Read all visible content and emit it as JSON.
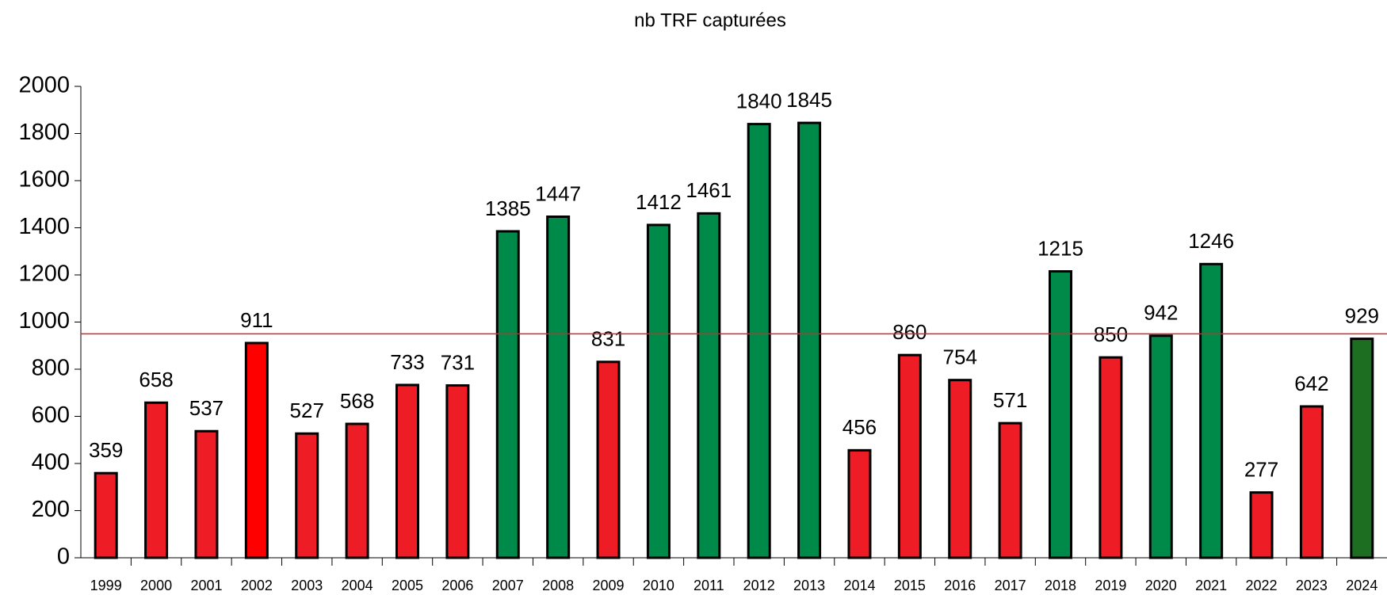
{
  "chart_data": {
    "type": "bar",
    "title": "nb TRF capturées",
    "categories": [
      "1999",
      "2000",
      "2001",
      "2002",
      "2003",
      "2004",
      "2005",
      "2006",
      "2007",
      "2008",
      "2009",
      "2010",
      "2011",
      "2012",
      "2013",
      "2014",
      "2015",
      "2016",
      "2017",
      "2018",
      "2019",
      "2020",
      "2021",
      "2022",
      "2023",
      "2024"
    ],
    "values": [
      359,
      658,
      537,
      911,
      527,
      568,
      733,
      731,
      1385,
      1447,
      831,
      1412,
      1461,
      1840,
      1845,
      456,
      860,
      754,
      571,
      1215,
      850,
      942,
      1246,
      277,
      642,
      929
    ],
    "colors": [
      "#ee1c25",
      "#ee1c25",
      "#ee1c25",
      "#ff0000",
      "#ee1c25",
      "#ee1c25",
      "#ee1c25",
      "#ee1c25",
      "#008a4a",
      "#008a4a",
      "#ee1c25",
      "#008a4a",
      "#008a4a",
      "#008a4a",
      "#008a4a",
      "#ee1c25",
      "#ee1c25",
      "#ee1c25",
      "#ee1c25",
      "#008a4a",
      "#ee1c25",
      "#008a4a",
      "#008a4a",
      "#ee1c25",
      "#ee1c25",
      "#1e6e22"
    ],
    "reference_line": {
      "value": 950,
      "color": "#d9252b"
    },
    "ylim": [
      0,
      2000
    ],
    "yticks": [
      0,
      200,
      400,
      600,
      800,
      1000,
      1200,
      1400,
      1600,
      1800,
      2000
    ],
    "grid": false
  }
}
